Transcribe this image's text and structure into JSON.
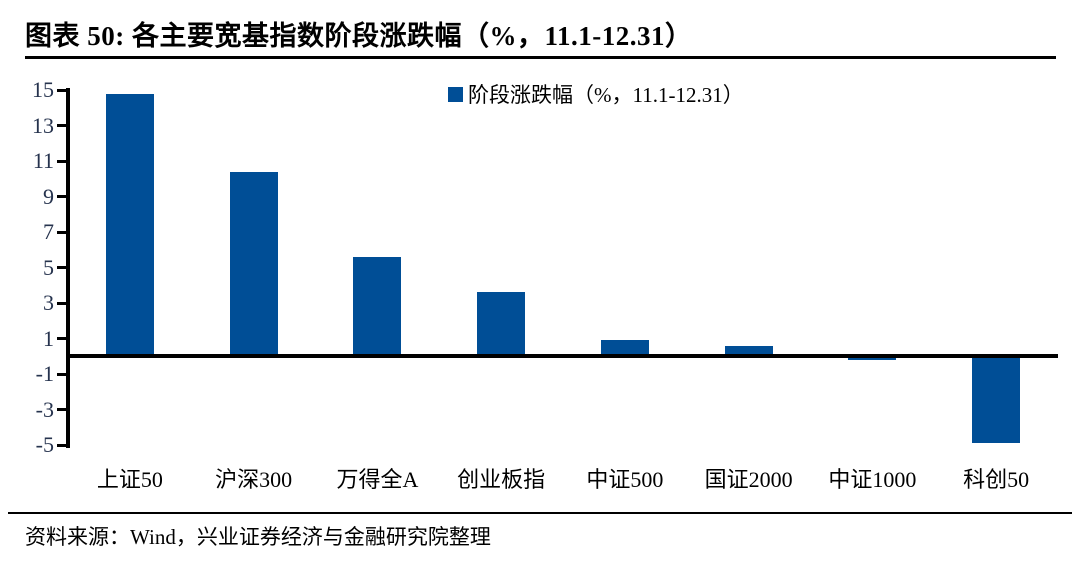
{
  "header": {
    "title": "图表 50:  各主要宽基指数阶段涨跌幅（%，11.1-12.31）"
  },
  "colors": {
    "bar": "#004E96",
    "axis": "#000000",
    "y_label": "#26334E"
  },
  "chart_data": {
    "type": "bar",
    "title": "各主要宽基指数阶段涨跌幅（%，11.1-12.31）",
    "legend": "阶段涨跌幅（%，11.1-12.31）",
    "legend_position": "top-center",
    "categories": [
      "上证50",
      "沪深300",
      "万得全A",
      "创业板指",
      "中证500",
      "国证2000",
      "中证1000",
      "科创50"
    ],
    "values": [
      14.8,
      10.4,
      5.6,
      3.6,
      0.9,
      0.6,
      -0.2,
      -4.9
    ],
    "xlabel": "",
    "ylabel": "",
    "ylim": [
      -5,
      15
    ],
    "yticks": [
      15,
      13,
      11,
      9,
      7,
      5,
      3,
      1,
      -1,
      -3,
      -5
    ],
    "grid": false
  },
  "footer": {
    "source": "资料来源：Wind，兴业证券经济与金融研究院整理"
  }
}
